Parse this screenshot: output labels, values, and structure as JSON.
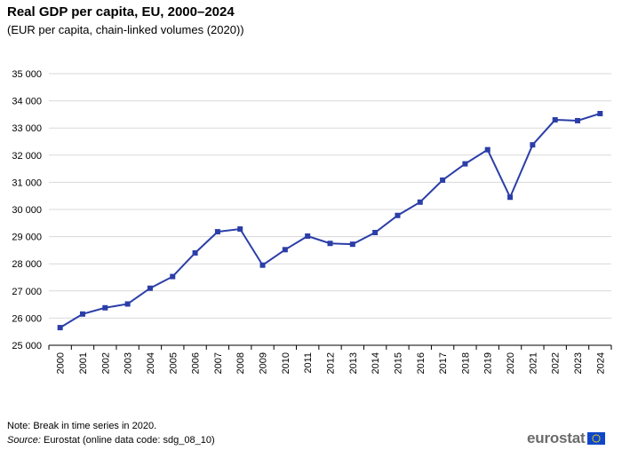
{
  "header": {
    "title": "Real GDP per capita, EU, 2000–2024",
    "subtitle": "(EUR per capita, chain-linked volumes (2020))"
  },
  "footer": {
    "note": "Note: Break in time series in 2020.",
    "source_label": "Source:",
    "source_text": " Eurostat (online data code: sdg_08_10)",
    "logo_text": "eurostat",
    "logo_icon": "eu-flag-icon"
  },
  "colors": {
    "line": "#2b3ea8",
    "grid": "#d9d9d9",
    "axis": "#000000",
    "flag_bg": "#0e47cb",
    "flag_star": "#ffdd00"
  },
  "chart_data": {
    "type": "line",
    "title": "Real GDP per capita, EU, 2000–2024",
    "subtitle": "(EUR per capita, chain-linked volumes (2020))",
    "xlabel": "",
    "ylabel": "",
    "ylim": [
      25000,
      35000
    ],
    "y_ticks": [
      25000,
      26000,
      27000,
      28000,
      29000,
      30000,
      31000,
      32000,
      33000,
      34000,
      35000
    ],
    "y_tick_labels": [
      "25 000",
      "26 000",
      "27 000",
      "28 000",
      "29 000",
      "30 000",
      "31 000",
      "32 000",
      "33 000",
      "34 000",
      "35 000"
    ],
    "grid": true,
    "legend": "none",
    "categories": [
      "2000",
      "2001",
      "2002",
      "2003",
      "2004",
      "2005",
      "2006",
      "2007",
      "2008",
      "2009",
      "2010",
      "2011",
      "2012",
      "2013",
      "2014",
      "2015",
      "2016",
      "2017",
      "2018",
      "2019",
      "2020",
      "2021",
      "2022",
      "2023",
      "2024"
    ],
    "series": [
      {
        "values": [
          25650,
          26150,
          26380,
          26520,
          27100,
          27530,
          28400,
          29180,
          29280,
          27950,
          28520,
          29020,
          28750,
          28720,
          29150,
          29780,
          30270,
          31080,
          31680,
          32200,
          30450,
          32380,
          33300,
          33270,
          33530
        ]
      }
    ]
  }
}
